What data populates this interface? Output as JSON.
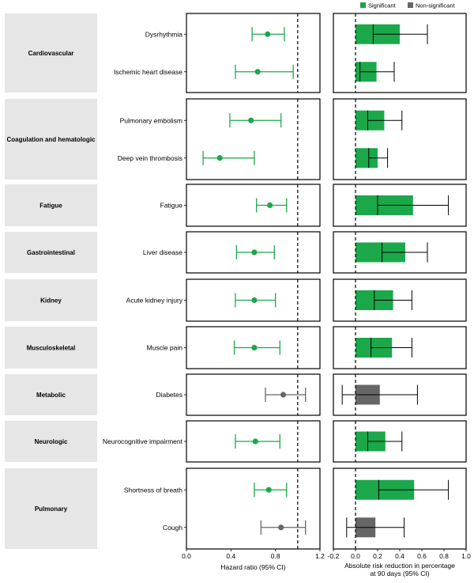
{
  "chart_data": {
    "type": "forest-plot-with-bars",
    "legend": {
      "entries": [
        {
          "label": "Significant",
          "color": "#1ba84a"
        },
        {
          "label": "Non-significant",
          "color": "#666666"
        }
      ],
      "position": "top-right"
    },
    "left_panel": {
      "xlabel": "Hazard ratio (95% CI)",
      "xlim": [
        0.0,
        1.2
      ],
      "ticks": [
        "0.0",
        "0.4",
        "0.8",
        "1.2"
      ],
      "reference_line": 1.0
    },
    "right_panel": {
      "xlabel_line1": "Absolute risk reduction in percentage",
      "xlabel_line2": "at 90 days (95% CI)",
      "xlim": [
        -0.2,
        1.0
      ],
      "ticks": [
        "-0.2",
        "0.0",
        "0.2",
        "0.4",
        "0.6",
        "0.8",
        "1.0"
      ],
      "reference_line": 0.0
    },
    "groups": [
      {
        "category": "Cardiovascular",
        "rows": [
          {
            "label": "Dysrhythmia",
            "significant": true,
            "hr": 0.73,
            "hr_lo": 0.59,
            "hr_hi": 0.88,
            "arr": 0.4,
            "arr_lo": 0.16,
            "arr_hi": 0.65
          },
          {
            "label": "Ischemic heart disease",
            "significant": true,
            "hr": 0.64,
            "hr_lo": 0.44,
            "hr_hi": 0.96,
            "arr": 0.19,
            "arr_lo": 0.04,
            "arr_hi": 0.35
          }
        ]
      },
      {
        "category": "Coagulation and hematologic",
        "rows": [
          {
            "label": "Pulmonary embolism",
            "significant": true,
            "hr": 0.58,
            "hr_lo": 0.39,
            "hr_hi": 0.85,
            "arr": 0.26,
            "arr_lo": 0.11,
            "arr_hi": 0.42
          },
          {
            "label": "Deep vein thrombosis",
            "significant": true,
            "hr": 0.3,
            "hr_lo": 0.15,
            "hr_hi": 0.61,
            "arr": 0.2,
            "arr_lo": 0.12,
            "arr_hi": 0.29
          }
        ]
      },
      {
        "category": "Fatigue",
        "rows": [
          {
            "label": "Fatigue",
            "significant": true,
            "hr": 0.75,
            "hr_lo": 0.63,
            "hr_hi": 0.9,
            "arr": 0.52,
            "arr_lo": 0.2,
            "arr_hi": 0.84
          }
        ]
      },
      {
        "category": "Gastrointestinal",
        "rows": [
          {
            "label": "Liver disease",
            "significant": true,
            "hr": 0.61,
            "hr_lo": 0.45,
            "hr_hi": 0.79,
            "arr": 0.45,
            "arr_lo": 0.24,
            "arr_hi": 0.65
          }
        ]
      },
      {
        "category": "Kidney",
        "rows": [
          {
            "label": "Acute kidney injury",
            "significant": true,
            "hr": 0.61,
            "hr_lo": 0.44,
            "hr_hi": 0.8,
            "arr": 0.34,
            "arr_lo": 0.17,
            "arr_hi": 0.51
          }
        ]
      },
      {
        "category": "Musculoskeletal",
        "rows": [
          {
            "label": "Muscle pain",
            "significant": true,
            "hr": 0.61,
            "hr_lo": 0.43,
            "hr_hi": 0.84,
            "arr": 0.33,
            "arr_lo": 0.14,
            "arr_hi": 0.51
          }
        ]
      },
      {
        "category": "Metabolic",
        "rows": [
          {
            "label": "Diabetes",
            "significant": false,
            "hr": 0.87,
            "hr_lo": 0.71,
            "hr_hi": 1.07,
            "arr": 0.22,
            "arr_lo": -0.12,
            "arr_hi": 0.56
          }
        ]
      },
      {
        "category": "Neurologic",
        "rows": [
          {
            "label": "Neurocognitive impairment",
            "significant": true,
            "hr": 0.62,
            "hr_lo": 0.44,
            "hr_hi": 0.84,
            "arr": 0.27,
            "arr_lo": 0.11,
            "arr_hi": 0.42
          }
        ]
      },
      {
        "category": "Pulmonary",
        "rows": [
          {
            "label": "Shortness of breath",
            "significant": true,
            "hr": 0.74,
            "hr_lo": 0.61,
            "hr_hi": 0.9,
            "arr": 0.53,
            "arr_lo": 0.21,
            "arr_hi": 0.84
          },
          {
            "label": "Cough",
            "significant": false,
            "hr": 0.85,
            "hr_lo": 0.67,
            "hr_hi": 1.07,
            "arr": 0.18,
            "arr_lo": -0.08,
            "arr_hi": 0.44
          }
        ]
      }
    ]
  }
}
